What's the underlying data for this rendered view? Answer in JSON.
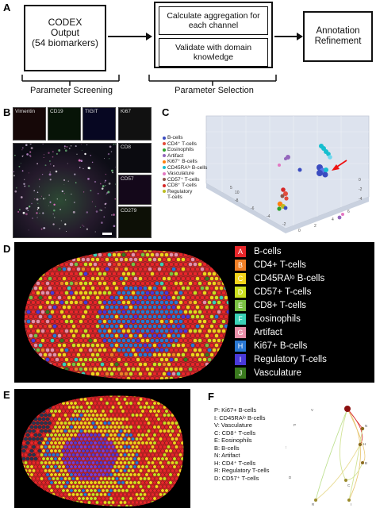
{
  "panels": {
    "a": "A",
    "b": "B",
    "c": "C",
    "d": "D",
    "e": "E",
    "f": "F"
  },
  "panel_a": {
    "box1_lines": [
      "CODEX",
      "Output",
      "(54 biomarkers)"
    ],
    "box2_top": "Calculate aggregation for each channel",
    "box2_bottom": "Validate with domain knowledge",
    "box3": "Annotation Refinement",
    "caption1": "Parameter Screening",
    "caption2": "Parameter Selection"
  },
  "panel_b": {
    "thumbs": [
      "Vimentin",
      "CD19",
      "TIGIT",
      "Ki67",
      "CD8",
      "CD57",
      "CD279"
    ]
  },
  "panel_c": {
    "legend": [
      {
        "label": "B-cells",
        "color": "#3b4cc0"
      },
      {
        "label": "CD4⁺ T-cells",
        "color": "#e24b3b"
      },
      {
        "label": "Eosinophils",
        "color": "#2ca02c"
      },
      {
        "label": "Artifact",
        "color": "#9467bd"
      },
      {
        "label": "Ki67⁺ B-cells",
        "color": "#ff7f0e"
      },
      {
        "label": "CD45RAˡᵒ B-cells",
        "color": "#17becf"
      },
      {
        "label": "Vasculature",
        "color": "#e377c2"
      },
      {
        "label": "CD57⁺ T-cells",
        "color": "#8c564b"
      },
      {
        "label": "CD8⁺ T-cells",
        "color": "#d62728"
      },
      {
        "label": "Regulatory",
        "color": "#bcbd22"
      },
      {
        "label": "T-cells",
        "color": ""
      }
    ]
  },
  "panel_d": {
    "legend": [
      {
        "badge": "A",
        "label": "B-cells",
        "color": "#e8262a"
      },
      {
        "badge": "B",
        "label": "CD4+ T-cells",
        "color": "#f07f26"
      },
      {
        "badge": "C",
        "label": "CD45RAˡᵒ B-cells",
        "color": "#f2d31b"
      },
      {
        "badge": "D",
        "label": "CD57+ T-cells",
        "color": "#cbe01f"
      },
      {
        "badge": "E",
        "label": "CD8+ T-cells",
        "color": "#7ac143"
      },
      {
        "badge": "F",
        "label": "Eosinophils",
        "color": "#3bd1b7"
      },
      {
        "badge": "G",
        "label": "Artifact",
        "color": "#e88fa9"
      },
      {
        "badge": "H",
        "label": "Ki67+ B-cells",
        "color": "#2a78d4"
      },
      {
        "badge": "I",
        "label": "Regulatory T-cells",
        "color": "#4a3ad9"
      },
      {
        "badge": "J",
        "label": "Vasculature",
        "color": "#3a7a1e"
      }
    ]
  },
  "panel_f": {
    "legend": [
      "P: Ki67+ B-cells",
      "I: CD45RAˡᵒ B-cells",
      "V: Vasculature",
      "C: CD8⁺ T-cells",
      "E: Eosinophils",
      "B: B-cells",
      "N: Artifact",
      "H: CD4⁺ T-cells",
      "R: Regulatory T-cells",
      "D: CD57⁺ T-cells"
    ],
    "node_letters": [
      "V",
      "P",
      "E",
      "D",
      "N",
      "H",
      "B",
      "C",
      "R",
      "I"
    ]
  }
}
